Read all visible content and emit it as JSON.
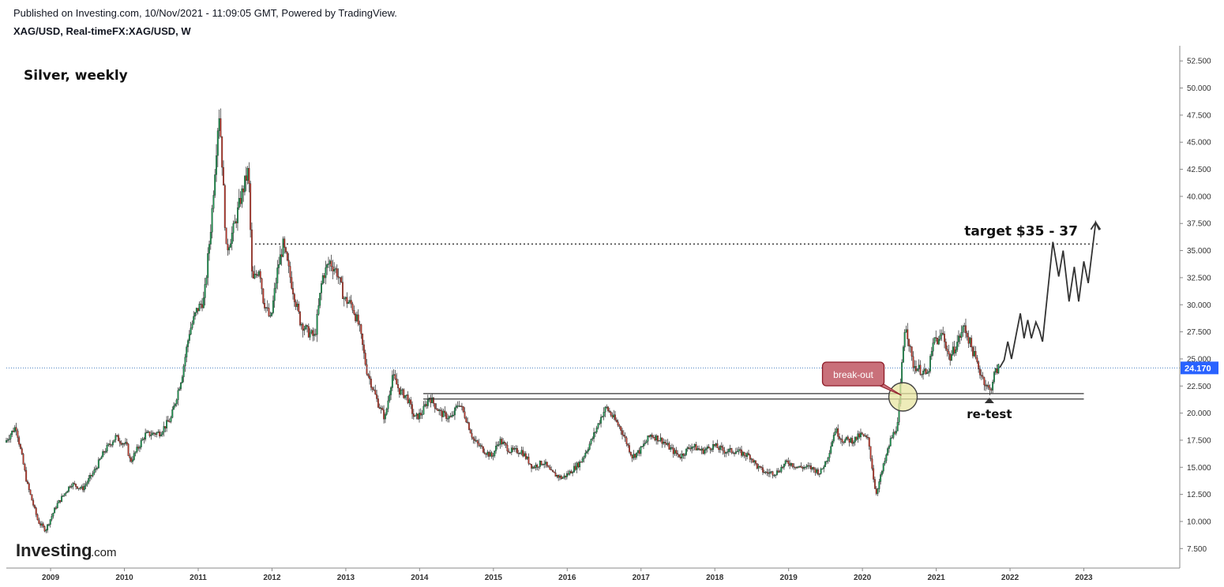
{
  "header": {
    "published": "Published on Investing.com, 10/Nov/2021 - 11:09:05 GMT, Powered by TradingView.",
    "symbol": "XAG/USD, Real-timeFX:XAG/USD, W"
  },
  "logo": {
    "main": "Investing",
    "suffix": ".com"
  },
  "colors": {
    "up": "#1a9850",
    "down": "#c0392b",
    "price_line": "#2a6db5",
    "price_badge": "#2962ff"
  },
  "chart_data": {
    "type": "candlestick",
    "title": "Silver, weekly",
    "xlim": [
      2008.4,
      2024.3
    ],
    "ylim": [
      5.7,
      53.9
    ],
    "y_ticks": [
      7.5,
      10,
      12.5,
      15,
      17.5,
      20,
      22.5,
      25,
      27.5,
      30,
      32.5,
      35,
      37.5,
      40,
      42.5,
      45,
      47.5,
      50,
      52.5
    ],
    "y_tick_labels": [
      "7.500",
      "10.000",
      "12.500",
      "15.000",
      "17.500",
      "20.000",
      "22.500",
      "25.000",
      "27.500",
      "30.000",
      "32.500",
      "35.000",
      "37.500",
      "40.000",
      "42.500",
      "45.000",
      "47.500",
      "50.000",
      "52.500"
    ],
    "x_ticks": [
      2009,
      2010,
      2011,
      2012,
      2013,
      2014,
      2015,
      2016,
      2017,
      2018,
      2019,
      2020,
      2021,
      2022,
      2023
    ],
    "x_tick_labels": [
      "2009",
      "2010",
      "2011",
      "2012",
      "2013",
      "2014",
      "2015",
      "2016",
      "2017",
      "2018",
      "2019",
      "2020",
      "2021",
      "2022",
      "2023"
    ],
    "last_price": 24.17,
    "last_price_label": "24.170",
    "price_path": [
      [
        2008.4,
        17.3
      ],
      [
        2008.55,
        18.8
      ],
      [
        2008.7,
        13.5
      ],
      [
        2008.85,
        10.0
      ],
      [
        2008.95,
        9.2
      ],
      [
        2009.1,
        11.5
      ],
      [
        2009.3,
        13.5
      ],
      [
        2009.45,
        13.0
      ],
      [
        2009.6,
        14.5
      ],
      [
        2009.75,
        16.5
      ],
      [
        2009.9,
        17.8
      ],
      [
        2010.05,
        17.0
      ],
      [
        2010.1,
        15.5
      ],
      [
        2010.3,
        18.0
      ],
      [
        2010.5,
        18.2
      ],
      [
        2010.65,
        19.5
      ],
      [
        2010.8,
        23.5
      ],
      [
        2010.9,
        27.5
      ],
      [
        2011.0,
        29.5
      ],
      [
        2011.1,
        30.5
      ],
      [
        2011.2,
        38.0
      ],
      [
        2011.3,
        48.0
      ],
      [
        2011.33,
        45.0
      ],
      [
        2011.4,
        35.0
      ],
      [
        2011.5,
        37.0
      ],
      [
        2011.6,
        40.0
      ],
      [
        2011.7,
        42.5
      ],
      [
        2011.75,
        32.0
      ],
      [
        2011.85,
        33.5
      ],
      [
        2011.9,
        30.5
      ],
      [
        2012.0,
        28.5
      ],
      [
        2012.1,
        33.5
      ],
      [
        2012.17,
        35.5
      ],
      [
        2012.3,
        31.5
      ],
      [
        2012.4,
        28.5
      ],
      [
        2012.5,
        27.5
      ],
      [
        2012.6,
        27.0
      ],
      [
        2012.7,
        32.5
      ],
      [
        2012.8,
        34.0
      ],
      [
        2012.9,
        33.0
      ],
      [
        2013.0,
        30.5
      ],
      [
        2013.1,
        30.0
      ],
      [
        2013.2,
        28.0
      ],
      [
        2013.3,
        24.0
      ],
      [
        2013.45,
        21.0
      ],
      [
        2013.55,
        19.5
      ],
      [
        2013.65,
        23.5
      ],
      [
        2013.75,
        22.0
      ],
      [
        2013.85,
        21.5
      ],
      [
        2013.95,
        19.5
      ],
      [
        2014.05,
        20.0
      ],
      [
        2014.15,
        21.5
      ],
      [
        2014.3,
        20.0
      ],
      [
        2014.45,
        19.5
      ],
      [
        2014.55,
        21.0
      ],
      [
        2014.65,
        19.5
      ],
      [
        2014.75,
        17.5
      ],
      [
        2014.9,
        16.5
      ],
      [
        2015.0,
        16.0
      ],
      [
        2015.1,
        17.5
      ],
      [
        2015.25,
        16.5
      ],
      [
        2015.4,
        16.5
      ],
      [
        2015.55,
        15.0
      ],
      [
        2015.7,
        15.5
      ],
      [
        2015.8,
        14.5
      ],
      [
        2015.95,
        14.0
      ],
      [
        2016.05,
        14.5
      ],
      [
        2016.2,
        15.5
      ],
      [
        2016.35,
        17.5
      ],
      [
        2016.5,
        20.0
      ],
      [
        2016.55,
        20.5
      ],
      [
        2016.65,
        19.5
      ],
      [
        2016.75,
        18.5
      ],
      [
        2016.9,
        16.0
      ],
      [
        2017.0,
        16.5
      ],
      [
        2017.15,
        18.0
      ],
      [
        2017.3,
        17.5
      ],
      [
        2017.45,
        16.5
      ],
      [
        2017.55,
        16.0
      ],
      [
        2017.7,
        17.0
      ],
      [
        2017.85,
        16.5
      ],
      [
        2018.0,
        17.0
      ],
      [
        2018.15,
        16.5
      ],
      [
        2018.3,
        16.5
      ],
      [
        2018.5,
        16.0
      ],
      [
        2018.6,
        15.0
      ],
      [
        2018.7,
        14.5
      ],
      [
        2018.85,
        14.5
      ],
      [
        2019.0,
        15.5
      ],
      [
        2019.15,
        15.0
      ],
      [
        2019.3,
        15.0
      ],
      [
        2019.45,
        14.5
      ],
      [
        2019.55,
        16.0
      ],
      [
        2019.65,
        18.5
      ],
      [
        2019.75,
        17.5
      ],
      [
        2019.9,
        17.5
      ],
      [
        2020.0,
        18.0
      ],
      [
        2020.1,
        17.5
      ],
      [
        2020.2,
        12.5
      ],
      [
        2020.3,
        15.0
      ],
      [
        2020.4,
        17.5
      ],
      [
        2020.5,
        19.0
      ],
      [
        2020.55,
        24.0
      ],
      [
        2020.6,
        28.5
      ],
      [
        2020.7,
        24.5
      ],
      [
        2020.8,
        24.0
      ],
      [
        2020.9,
        23.5
      ],
      [
        2021.0,
        27.0
      ],
      [
        2021.05,
        26.5
      ],
      [
        2021.1,
        27.5
      ],
      [
        2021.2,
        25.0
      ],
      [
        2021.3,
        26.5
      ],
      [
        2021.4,
        28.0
      ],
      [
        2021.5,
        26.0
      ],
      [
        2021.6,
        24.0
      ],
      [
        2021.7,
        22.5
      ],
      [
        2021.75,
        22.0
      ],
      [
        2021.8,
        23.5
      ],
      [
        2021.86,
        24.2
      ]
    ],
    "projection": [
      [
        2021.86,
        24.2
      ],
      [
        2021.92,
        24.9
      ],
      [
        2021.97,
        26.6
      ],
      [
        2022.02,
        25.0
      ],
      [
        2022.09,
        27.5
      ],
      [
        2022.14,
        29.2
      ],
      [
        2022.19,
        26.9
      ],
      [
        2022.24,
        28.6
      ],
      [
        2022.29,
        26.9
      ],
      [
        2022.35,
        28.4
      ],
      [
        2022.4,
        27.6
      ],
      [
        2022.44,
        26.6
      ],
      [
        2022.58,
        35.8
      ],
      [
        2022.66,
        32.6
      ],
      [
        2022.72,
        35.0
      ],
      [
        2022.8,
        30.3
      ],
      [
        2022.87,
        33.5
      ],
      [
        2022.93,
        30.3
      ],
      [
        2023.0,
        34.0
      ],
      [
        2023.06,
        32.0
      ],
      [
        2023.16,
        37.6
      ],
      [
        2023.21,
        36.9
      ]
    ],
    "annotations": {
      "target_label": "target $35 - 37",
      "target_level": 35.6,
      "target_line_start": 2011.77,
      "target_line_end": 2023.2,
      "support_levels": [
        21.8,
        21.3
      ],
      "support_start": 2014.05,
      "support_end": 2023.0,
      "breakout_label": "break-out",
      "breakout_point": [
        2020.55,
        21.5
      ],
      "retest_label": "re-test",
      "retest_point": [
        2021.72,
        21.5
      ]
    }
  }
}
